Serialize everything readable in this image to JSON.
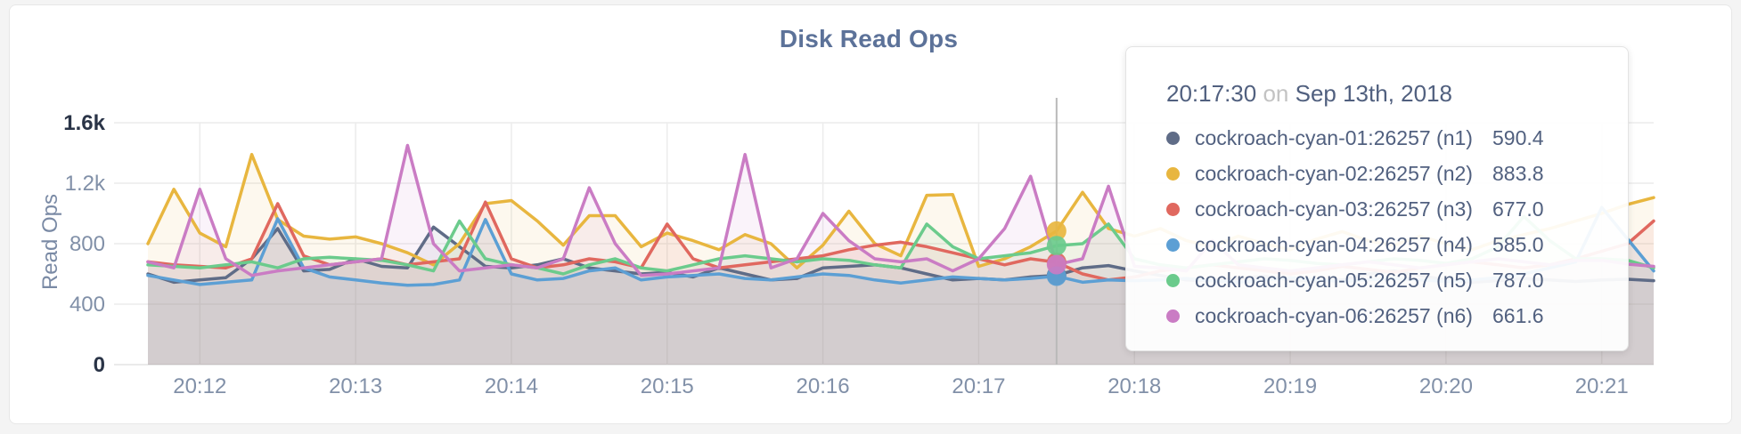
{
  "chart_data": {
    "type": "area",
    "title": "Disk Read Ops",
    "ylabel": "Read Ops",
    "xlabel": "",
    "ylim": [
      0,
      1600
    ],
    "grid": true,
    "legend_position": "tooltip",
    "x_unit": "time, one point per 10s starting 20:11:40",
    "x_ticks": [
      {
        "index": 2,
        "label": "20:12"
      },
      {
        "index": 8,
        "label": "20:13"
      },
      {
        "index": 14,
        "label": "20:14"
      },
      {
        "index": 20,
        "label": "20:15"
      },
      {
        "index": 26,
        "label": "20:16"
      },
      {
        "index": 32,
        "label": "20:17"
      },
      {
        "index": 38,
        "label": "20:18"
      },
      {
        "index": 44,
        "label": "20:19"
      },
      {
        "index": 50,
        "label": "20:20"
      },
      {
        "index": 56,
        "label": "20:21"
      }
    ],
    "y_ticks": [
      {
        "value": 0,
        "label": "0",
        "strong": true
      },
      {
        "value": 400,
        "label": "400",
        "strong": false
      },
      {
        "value": 800,
        "label": "800",
        "strong": false
      },
      {
        "value": 1200,
        "label": "1.2k",
        "strong": false
      },
      {
        "value": 1600,
        "label": "1.6k",
        "strong": true
      }
    ],
    "series": [
      {
        "name": "cockroach-cyan-01:26257 (n1)",
        "color": "#5f6c87",
        "values": [
          600,
          545,
          560,
          575,
          700,
          900,
          620,
          630,
          700,
          650,
          640,
          910,
          780,
          650,
          640,
          660,
          700,
          640,
          620,
          600,
          610,
          580,
          640,
          600,
          560,
          570,
          640,
          650,
          660,
          640,
          600,
          560,
          570,
          560,
          580,
          590.4,
          640,
          655,
          620,
          590,
          560,
          555,
          570,
          585,
          560,
          550,
          560,
          600,
          620,
          590,
          560,
          545,
          555,
          570,
          560,
          550,
          560,
          565,
          555
        ]
      },
      {
        "name": "cockroach-cyan-02:26257 (n2)",
        "color": "#e8b63f",
        "values": [
          800,
          1160,
          870,
          780,
          1390,
          960,
          850,
          830,
          845,
          800,
          740,
          660,
          800,
          1065,
          1085,
          950,
          790,
          985,
          985,
          780,
          870,
          820,
          760,
          860,
          800,
          640,
          790,
          1015,
          800,
          720,
          1120,
          1125,
          650,
          700,
          780,
          883.8,
          1140,
          900,
          850,
          900,
          820,
          780,
          850,
          800,
          760,
          830,
          880,
          820,
          790,
          850,
          800,
          760,
          820,
          860,
          900,
          950,
          1000,
          1060,
          1105
        ]
      },
      {
        "name": "cockroach-cyan-03:26257 (n3)",
        "color": "#e0685f",
        "values": [
          680,
          660,
          650,
          640,
          700,
          1065,
          720,
          660,
          680,
          700,
          660,
          680,
          700,
          1075,
          700,
          640,
          660,
          700,
          680,
          640,
          930,
          700,
          640,
          660,
          680,
          700,
          720,
          760,
          790,
          810,
          780,
          740,
          700,
          660,
          700,
          677,
          600,
          560,
          580,
          620,
          640,
          660,
          640,
          620,
          600,
          620,
          650,
          630,
          610,
          640,
          660,
          680,
          660,
          640,
          660,
          700,
          750,
          800,
          950
        ]
      },
      {
        "name": "cockroach-cyan-04:26257 (n4)",
        "color": "#5c9fd4",
        "values": [
          590,
          560,
          530,
          545,
          560,
          965,
          640,
          580,
          560,
          540,
          525,
          530,
          560,
          960,
          600,
          560,
          570,
          620,
          640,
          560,
          580,
          590,
          600,
          570,
          560,
          580,
          600,
          590,
          560,
          540,
          560,
          580,
          570,
          560,
          570,
          585,
          545,
          560,
          555,
          560,
          570,
          555,
          545,
          560,
          575,
          560,
          550,
          560,
          570,
          560,
          550,
          560,
          575,
          600,
          640,
          680,
          1040,
          830,
          620
        ]
      },
      {
        "name": "cockroach-cyan-05:26257 (n5)",
        "color": "#6bcb8c",
        "values": [
          660,
          650,
          640,
          660,
          680,
          640,
          700,
          710,
          700,
          690,
          660,
          620,
          950,
          700,
          660,
          640,
          600,
          660,
          700,
          640,
          620,
          660,
          700,
          720,
          700,
          680,
          700,
          690,
          660,
          640,
          930,
          780,
          700,
          720,
          740,
          787,
          800,
          930,
          700,
          660,
          640,
          660,
          680,
          700,
          690,
          670,
          660,
          680,
          700,
          690,
          670,
          700,
          780,
          980,
          820,
          700,
          700,
          690,
          640
        ]
      },
      {
        "name": "cockroach-cyan-06:26257 (n6)",
        "color": "#ca7cc4",
        "values": [
          680,
          640,
          1160,
          700,
          590,
          620,
          640,
          660,
          680,
          700,
          1450,
          800,
          620,
          640,
          660,
          640,
          700,
          1170,
          800,
          590,
          600,
          620,
          640,
          1390,
          640,
          700,
          1000,
          820,
          700,
          680,
          700,
          620,
          700,
          900,
          1246,
          661.6,
          700,
          1180,
          650,
          640,
          620,
          820,
          660,
          640,
          620,
          640,
          660,
          680,
          660,
          640,
          660,
          680,
          700,
          680,
          660,
          690,
          690,
          665,
          650
        ]
      }
    ]
  },
  "tooltip": {
    "hover_index": 35,
    "time": "20:17:30",
    "conjunction": "on",
    "date": "Sep 13th, 2018",
    "rows": [
      {
        "name": "cockroach-cyan-01:26257 (n1)",
        "value": "590.4"
      },
      {
        "name": "cockroach-cyan-02:26257 (n2)",
        "value": "883.8"
      },
      {
        "name": "cockroach-cyan-03:26257 (n3)",
        "value": "677.0"
      },
      {
        "name": "cockroach-cyan-04:26257 (n4)",
        "value": "585.0"
      },
      {
        "name": "cockroach-cyan-05:26257 (n5)",
        "value": "787.0"
      },
      {
        "name": "cockroach-cyan-06:26257 (n6)",
        "value": "661.6"
      }
    ]
  },
  "colors": {
    "page_bg": "#f4f4f4",
    "card_bg": "#ffffff",
    "grid": "#ececec",
    "axis_text": "#8190a8",
    "axis_text_strong": "#2a3447",
    "title_text": "#5c7299",
    "hover_line": "#b9b9b9"
  }
}
